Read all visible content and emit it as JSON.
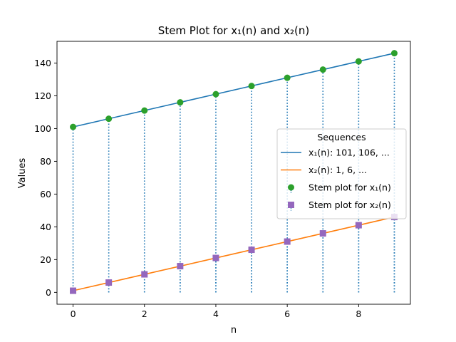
{
  "chart_data": {
    "type": "line",
    "title": "Stem Plot for x₁(n) and x₂(n)",
    "xlabel": "n",
    "ylabel": "Values",
    "x": [
      0,
      1,
      2,
      3,
      4,
      5,
      6,
      7,
      8,
      9
    ],
    "xlim": [
      -0.45,
      9.45
    ],
    "ylim": [
      -7.25,
      153.25
    ],
    "xticks": [
      0,
      2,
      4,
      6,
      8
    ],
    "yticks": [
      0,
      20,
      40,
      60,
      80,
      100,
      120,
      140
    ],
    "grid": false,
    "legend": {
      "title": "Sequences",
      "placement": "center-right"
    },
    "series": [
      {
        "name": "x₁(n): 101, 106, ...",
        "kind": "line",
        "color": "#1f77b4",
        "values": [
          101,
          106,
          111,
          116,
          121,
          126,
          131,
          136,
          141,
          146
        ]
      },
      {
        "name": "x₂(n): 1, 6, ...",
        "kind": "line",
        "color": "#ff7f0e",
        "values": [
          1,
          6,
          11,
          16,
          21,
          26,
          31,
          36,
          41,
          46
        ]
      },
      {
        "name": "Stem plot for x₁(n)",
        "kind": "stem",
        "marker": "circle",
        "marker_color": "#2ca02c",
        "stem_color": "#1f77b4",
        "values": [
          101,
          106,
          111,
          116,
          121,
          126,
          131,
          136,
          141,
          146
        ]
      },
      {
        "name": "Stem plot for x₂(n)",
        "kind": "stem",
        "marker": "square",
        "marker_color": "#9467bd",
        "stem_color": "#1f77b4",
        "values": [
          1,
          6,
          11,
          16,
          21,
          26,
          31,
          36,
          41,
          46
        ]
      }
    ]
  }
}
